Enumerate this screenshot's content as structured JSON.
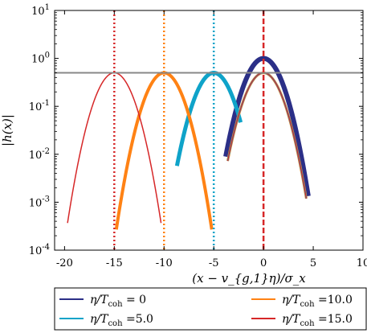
{
  "chart_data": {
    "type": "line",
    "title": "",
    "xlabel": "(x − v_{g,1}η)/σ_x",
    "ylabel": "|h(x)|",
    "xlim": [
      -21,
      10
    ],
    "ylim": [
      0.0001,
      10
    ],
    "yscale": "log",
    "grid": false,
    "legend_position": "below plot, two columns",
    "x_tick_labels": [
      "-20",
      "-15",
      "-10",
      "-5",
      "0",
      "5",
      "10"
    ],
    "x_ticks": [
      -20,
      -15,
      -10,
      -5,
      0,
      5,
      10
    ],
    "y_tick_labels": [
      {
        "base": "10",
        "exp": "-4"
      },
      {
        "base": "10",
        "exp": "-3"
      },
      {
        "base": "10",
        "exp": "-2"
      },
      {
        "base": "10",
        "exp": "-1"
      },
      {
        "base": "10",
        "exp": "0"
      },
      {
        "base": "10",
        "exp": "1"
      }
    ],
    "y_ticks": [
      0.0001,
      0.001,
      0.01,
      0.1,
      1,
      10
    ],
    "series": [
      {
        "name": "η/T_coh = 0",
        "legend_main": "η/T",
        "legend_sub": "coh",
        "legend_rest": " = 0",
        "color": "#2b2f87",
        "center": 0,
        "peak": 1.0,
        "x_range": [
          -3.8,
          4.5
        ],
        "line_width": 6
      },
      {
        "name": "η/T_coh =5.0",
        "legend_main": "η/T",
        "legend_sub": "coh",
        "legend_rest": " =5.0",
        "color": "#0fa3c9",
        "center": -5,
        "peak": 0.5,
        "x_range": [
          -8.7,
          -2.3
        ],
        "line_width": 5
      },
      {
        "name": "η/T_coh =10.0",
        "legend_main": "η/T",
        "legend_sub": "coh",
        "legend_rest": " =10.0",
        "color": "#ff8214",
        "center": -10,
        "peak": 0.5,
        "x_range": [
          -14.8,
          -5.2
        ],
        "line_width": 4
      },
      {
        "name": "η/T_coh =15.0",
        "legend_main": "η/T",
        "legend_sub": "coh",
        "legend_rest": " =15.0",
        "color": "#d62728",
        "center": -15,
        "peak": 0.5,
        "x_range": [
          -19.7,
          -10.3
        ],
        "line_width": 1.5
      }
    ],
    "extra_curves": [
      {
        "color": "#ff8214",
        "center": 0,
        "peak": 0.5,
        "x_range": [
          -3.6,
          4.3
        ],
        "line_width": 3
      },
      {
        "color": "#0fa3c9",
        "center": 0,
        "peak": 0.5,
        "x_range": [
          -3.6,
          4.3
        ],
        "line_width": 2
      },
      {
        "color": "#d62728",
        "center": 0,
        "peak": 0.5,
        "x_range": [
          -3.6,
          4.3
        ],
        "line_width": 1.2
      }
    ],
    "gaussian_width": 1.75,
    "horizontal_line": {
      "y": 0.5,
      "color": "#888888"
    },
    "vertical_lines": [
      {
        "x": 0,
        "color": "#d62728",
        "style": "dashed"
      },
      {
        "x": -5,
        "color": "#0fa3c9",
        "style": "dotted"
      },
      {
        "x": -10,
        "color": "#ff8214",
        "style": "dotted"
      },
      {
        "x": -15,
        "color": "#d62728",
        "style": "dotted"
      }
    ]
  }
}
